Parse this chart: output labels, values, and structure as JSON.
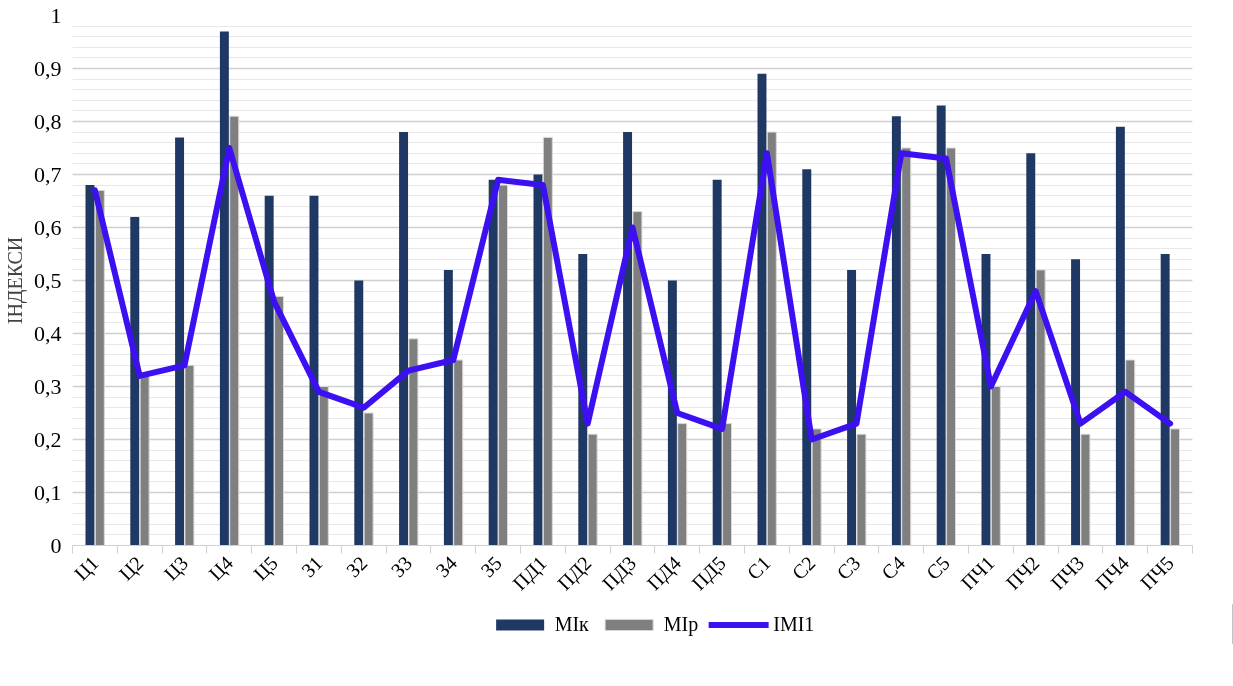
{
  "chart_data": {
    "type": "bar",
    "ylabel": "ІНДЕКСИ",
    "categories": [
      "Ц1",
      "Ц2",
      "Ц3",
      "Ц4",
      "Ц5",
      "З1",
      "З2",
      "З3",
      "З4",
      "З5",
      "ПД1",
      "ПД2",
      "ПД3",
      "ПД4",
      "ПД5",
      "С1",
      "С2",
      "С3",
      "С4",
      "С5",
      "ПЧ1",
      "ПЧ2",
      "ПЧ3",
      "ПЧ4",
      "ПЧ5"
    ],
    "series": [
      {
        "name": "МІк",
        "color": "#1f3864",
        "values": [
          0.68,
          0.62,
          0.77,
          0.97,
          0.66,
          0.66,
          0.5,
          0.78,
          0.52,
          0.69,
          0.7,
          0.55,
          0.78,
          0.5,
          0.69,
          0.89,
          0.71,
          0.52,
          0.81,
          0.83,
          0.55,
          0.74,
          0.54,
          0.79,
          0.55
        ]
      },
      {
        "name": "МІр",
        "color": "#7f7f7f",
        "values": [
          0.67,
          0.32,
          0.34,
          0.81,
          0.47,
          0.3,
          0.25,
          0.39,
          0.35,
          0.68,
          0.77,
          0.21,
          0.63,
          0.23,
          0.23,
          0.78,
          0.22,
          0.21,
          0.75,
          0.75,
          0.3,
          0.52,
          0.21,
          0.35,
          0.22
        ]
      },
      {
        "name": "ІМІ1",
        "type": "line",
        "color": "#3c10f0",
        "values": [
          0.67,
          0.32,
          0.34,
          0.75,
          0.46,
          0.29,
          0.26,
          0.33,
          0.35,
          0.69,
          0.68,
          0.23,
          0.6,
          0.25,
          0.22,
          0.74,
          0.2,
          0.23,
          0.74,
          0.73,
          0.3,
          0.48,
          0.23,
          0.29,
          0.23
        ]
      }
    ],
    "ylim": [
      0,
      1
    ],
    "yticks": [
      0,
      {
        "value": 0.1,
        "label": "0,1"
      },
      {
        "value": 0.2,
        "label": "0,2"
      },
      {
        "value": 0.3,
        "label": "0,3"
      },
      {
        "value": 0.4,
        "label": "0,4"
      },
      {
        "value": 0.5,
        "label": "0,5"
      },
      {
        "value": 0.6,
        "label": "0,6"
      },
      {
        "value": 0.7,
        "label": "0,7"
      },
      {
        "value": 0.8,
        "label": "0,8"
      },
      {
        "value": 0.9,
        "label": "0,9"
      },
      1
    ],
    "grid": "y",
    "legend": "bottom"
  }
}
